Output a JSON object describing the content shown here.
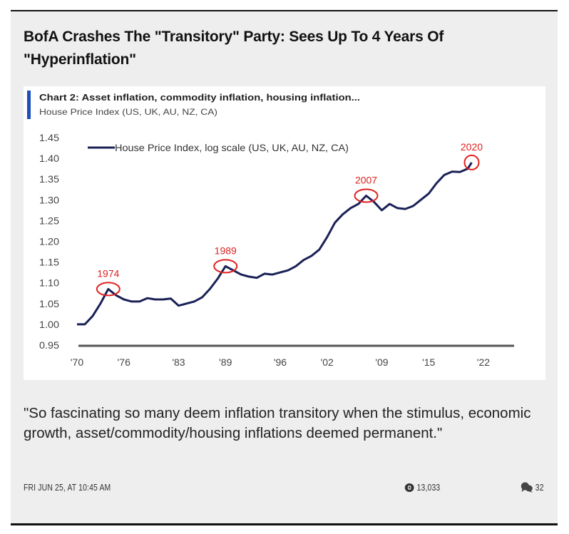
{
  "article": {
    "title": "BofA Crashes The \"Transitory\" Party: Sees Up To 4 Years Of \"Hyperinflation\"",
    "quote": "\"So fascinating so many deem inflation transitory when the stimulus, economic growth, asset/commodity/housing inflations deemed permanent.\"",
    "date": "FRI JUN 25, AT 10:45 AM",
    "views": "13,033",
    "comments": "32",
    "views_icon": "eye-icon",
    "comments_icon": "speech-bubbles-icon"
  },
  "chart_data": {
    "type": "line",
    "title": "Chart 2: Asset inflation, commodity inflation, housing inflation...",
    "subtitle": "House Price Index (US, UK, AU, NZ, CA)",
    "legend": "House Price Index, log scale (US, UK, AU, NZ, CA)",
    "legend_position": "top-left",
    "grid": false,
    "xlim": [
      1970,
      2025
    ],
    "ylim": [
      0.95,
      1.45
    ],
    "x_ticks": [
      "'70",
      "'76",
      "'83",
      "'89",
      "'96",
      "'02",
      "'09",
      "'15",
      "'22"
    ],
    "x_tick_values": [
      1970,
      1976,
      1983,
      1989,
      1996,
      2002,
      2009,
      2015,
      2022
    ],
    "y_ticks": [
      "1.45",
      "1.40",
      "1.35",
      "1.30",
      "1.25",
      "1.20",
      "1.15",
      "1.10",
      "1.05",
      "1.00",
      "0.95"
    ],
    "series": [
      {
        "name": "House Price Index, log scale (US, UK, AU, NZ, CA)",
        "color": "#1a2156",
        "x": [
          1970,
          1971,
          1972,
          1973,
          1974,
          1975,
          1976,
          1977,
          1978,
          1979,
          1980,
          1981,
          1982,
          1983,
          1984,
          1985,
          1986,
          1987,
          1988,
          1989,
          1990,
          1991,
          1992,
          1993,
          1994,
          1995,
          1996,
          1997,
          1998,
          1999,
          2000,
          2001,
          2002,
          2003,
          2004,
          2005,
          2006,
          2007,
          2008,
          2009,
          2010,
          2011,
          2012,
          2013,
          2014,
          2015,
          2016,
          2017,
          2018,
          2019,
          2020,
          2020.5
        ],
        "y": [
          1.0,
          1.0,
          1.02,
          1.05,
          1.085,
          1.07,
          1.06,
          1.055,
          1.055,
          1.063,
          1.06,
          1.06,
          1.062,
          1.045,
          1.05,
          1.055,
          1.065,
          1.085,
          1.11,
          1.14,
          1.13,
          1.12,
          1.115,
          1.112,
          1.122,
          1.12,
          1.125,
          1.13,
          1.14,
          1.155,
          1.165,
          1.18,
          1.21,
          1.245,
          1.265,
          1.28,
          1.29,
          1.31,
          1.295,
          1.275,
          1.29,
          1.28,
          1.278,
          1.285,
          1.3,
          1.315,
          1.34,
          1.36,
          1.368,
          1.367,
          1.375,
          1.39
        ]
      }
    ],
    "annotations": [
      {
        "label": "1974",
        "x": 1974,
        "y": 1.085
      },
      {
        "label": "1989",
        "x": 1989,
        "y": 1.14
      },
      {
        "label": "2007",
        "x": 2007,
        "y": 1.31
      },
      {
        "label": "2020",
        "x": 2020.5,
        "y": 1.39
      }
    ],
    "colors": {
      "title_bar": "#1d4fb8",
      "annotation": "#e02020",
      "axis": "#555555"
    }
  }
}
